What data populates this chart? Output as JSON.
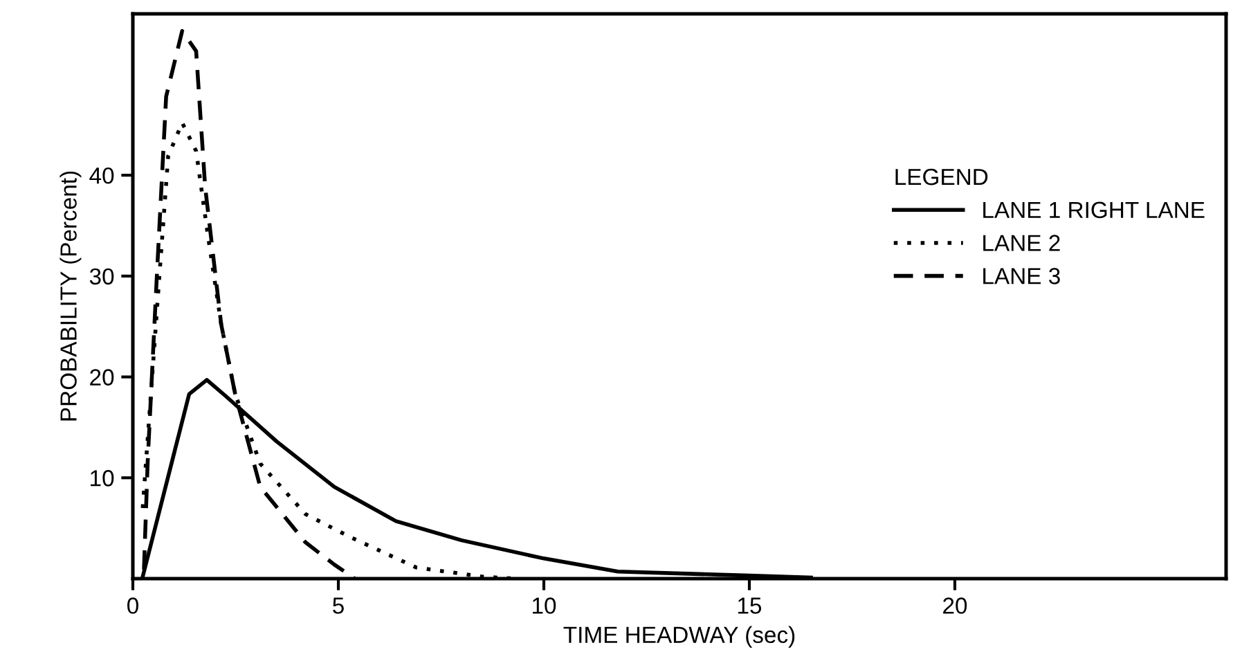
{
  "chart_data": {
    "type": "line",
    "xlabel": "TIME HEADWAY (sec)",
    "ylabel": "PROBABILITY (Percent)",
    "legend_title": "LEGEND",
    "legend": "right",
    "xlim": [
      0,
      26.6
    ],
    "ylim": [
      0,
      56
    ],
    "xticks": [
      0,
      5,
      10,
      15,
      20
    ],
    "yticks": [
      10,
      20,
      30,
      40
    ],
    "grid": false,
    "series": [
      {
        "name": "LANE 1 RIGHT LANE",
        "color": "#000000",
        "line_style": "solid",
        "x": [
          0.24,
          1.37,
          1.8,
          2.26,
          3.5,
          4.9,
          6.4,
          8.0,
          10.0,
          11.8,
          15.0,
          16.5
        ],
        "values": [
          0.2,
          18.3,
          19.7,
          18.1,
          13.6,
          9.1,
          5.7,
          3.8,
          2.0,
          0.7,
          0.3,
          0.1
        ]
      },
      {
        "name": "LANE 2",
        "color": "#000000",
        "line_style": "dotted",
        "x": [
          0.24,
          0.64,
          0.86,
          1.2,
          1.54,
          1.82,
          2.15,
          2.49,
          3.1,
          4.2,
          5.3,
          6.9,
          8.5,
          9.3
        ],
        "values": [
          7,
          29.7,
          41.9,
          45.2,
          42.4,
          34.2,
          25.2,
          18.3,
          11.4,
          6.4,
          4.1,
          1.1,
          0.2,
          0
        ]
      },
      {
        "name": "LANE 3",
        "color": "#000000",
        "line_style": "dashed",
        "x": [
          0.27,
          0.36,
          0.58,
          0.81,
          1.2,
          1.54,
          1.76,
          2.15,
          2.49,
          3.1,
          4.2,
          4.9,
          5.4
        ],
        "values": [
          0.9,
          11.5,
          29.7,
          47.8,
          54.3,
          52.3,
          38.8,
          25.2,
          18.3,
          9.1,
          3.6,
          1.4,
          0
        ]
      }
    ]
  }
}
